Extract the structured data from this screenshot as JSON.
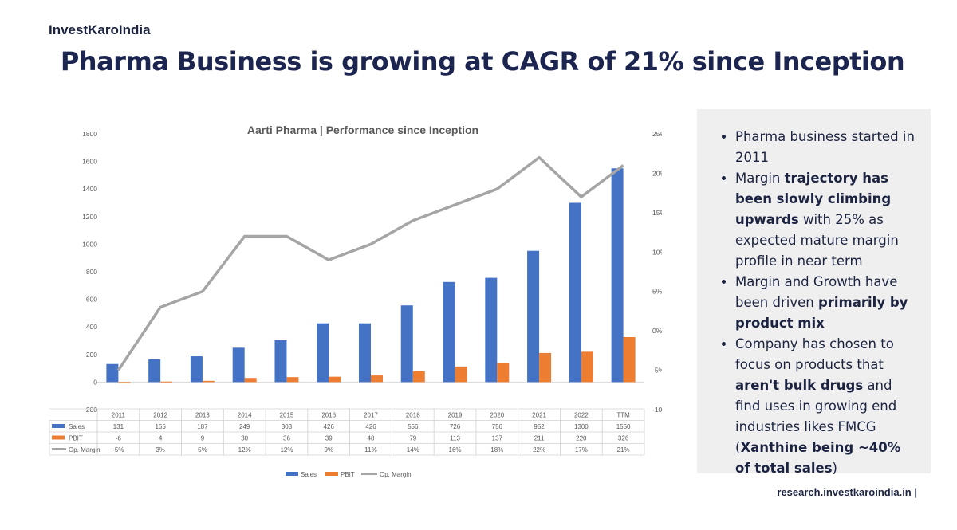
{
  "brand": "InvestKaroIndia",
  "headline": "Pharma Business is growing at CAGR of 21% since Inception",
  "footer": "research.investkaroindia.in |",
  "bullets": [
    [
      {
        "t": "Pharma business started in 2011",
        "b": false
      }
    ],
    [
      {
        "t": "Margin ",
        "b": false
      },
      {
        "t": "trajectory has been slowly climbing upwards",
        "b": true
      },
      {
        "t": " with 25% as expected mature margin profile in near term",
        "b": false
      }
    ],
    [
      {
        "t": "Margin and Growth have been driven ",
        "b": false
      },
      {
        "t": "primarily by product mix",
        "b": true
      }
    ],
    [
      {
        "t": "Company has chosen to focus on products that ",
        "b": false
      },
      {
        "t": "aren't bulk drugs",
        "b": true
      },
      {
        "t": " and find uses in growing end industries likes FMCG (",
        "b": false
      },
      {
        "t": "Xanthine being ~40% of total sales",
        "b": true
      },
      {
        "t": ")",
        "b": false
      }
    ]
  ],
  "chart_data": {
    "type": "bar",
    "title": "Aarti Pharma | Performance since Inception",
    "categories": [
      "2011",
      "2012",
      "2013",
      "2014",
      "2015",
      "2016",
      "2017",
      "2018",
      "2019",
      "2020",
      "2021",
      "2022",
      "TTM"
    ],
    "series": [
      {
        "name": "Sales",
        "type": "bar",
        "axis": "left",
        "color": "#4472c4",
        "values": [
          131,
          165,
          187,
          249,
          303,
          426,
          426,
          556,
          726,
          756,
          952,
          1300,
          1550
        ]
      },
      {
        "name": "PBIT",
        "type": "bar",
        "axis": "left",
        "color": "#ed7d31",
        "values": [
          -6,
          4,
          9,
          30,
          36,
          39,
          48,
          79,
          113,
          137,
          211,
          220,
          326
        ]
      },
      {
        "name": "Op. Margin",
        "type": "line",
        "axis": "right",
        "color": "#a5a5a5",
        "values": [
          -5,
          3,
          5,
          12,
          12,
          9,
          11,
          14,
          16,
          18,
          22,
          17,
          21
        ]
      }
    ],
    "y_left": {
      "min": -200,
      "max": 1800,
      "ticks": [
        "1800",
        "1600",
        "1400",
        "1200",
        "1000",
        "800",
        "600",
        "400",
        "200",
        "0",
        "-200"
      ]
    },
    "y_right": {
      "min": -10,
      "max": 25,
      "ticks": [
        "25%",
        "20%",
        "15%",
        "10%",
        "5%",
        "0%",
        "-5%",
        "-10%"
      ]
    },
    "table_rows": [
      {
        "name": "Sales",
        "cells": [
          "131",
          "165",
          "187",
          "249",
          "303",
          "426",
          "426",
          "556",
          "726",
          "756",
          "952",
          "1300",
          "1550"
        ]
      },
      {
        "name": "PBIT",
        "cells": [
          "-6",
          "4",
          "9",
          "30",
          "36",
          "39",
          "48",
          "79",
          "113",
          "137",
          "211",
          "220",
          "326"
        ]
      },
      {
        "name": "Op. Margin",
        "cells": [
          "-5%",
          "3%",
          "5%",
          "12%",
          "12%",
          "9%",
          "11%",
          "14%",
          "16%",
          "18%",
          "22%",
          "17%",
          "21%"
        ]
      }
    ],
    "legend": [
      "Sales",
      "PBIT",
      "Op. Margin"
    ],
    "legend_position": "bottom",
    "grid": false
  }
}
